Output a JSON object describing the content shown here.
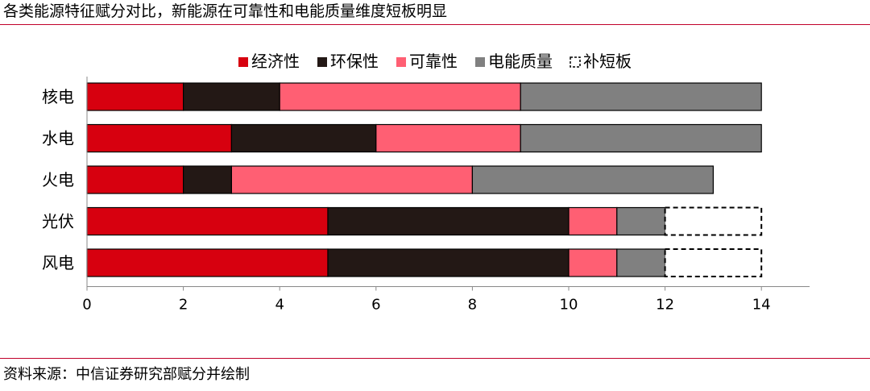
{
  "header": {
    "title": "各类能源特征赋分对比，新能源在可靠性和电能质量维度短板明显"
  },
  "footer": {
    "source": "资料来源：中信证券研究部赋分并绘制"
  },
  "chart_data": {
    "type": "bar",
    "orientation": "horizontal",
    "stacked": true,
    "categories": [
      "核电",
      "水电",
      "火电",
      "光伏",
      "风电"
    ],
    "series": [
      {
        "name": "经济性",
        "color": "#d7000f",
        "values": [
          2,
          3,
          2,
          5,
          5
        ]
      },
      {
        "name": "环保性",
        "color": "#231815",
        "values": [
          2,
          3,
          1,
          5,
          5
        ]
      },
      {
        "name": "可靠性",
        "color": "#ff5f73",
        "values": [
          5,
          3,
          5,
          1,
          1
        ]
      },
      {
        "name": "电能质量",
        "color": "#808080",
        "values": [
          5,
          5,
          5,
          1,
          1
        ]
      },
      {
        "name": "补短板",
        "color": "#ffffff",
        "style": "dashed-outline",
        "values": [
          0,
          0,
          0,
          2,
          2
        ]
      }
    ],
    "xticks": [
      0,
      2,
      4,
      6,
      8,
      10,
      12,
      14
    ],
    "xlim": [
      0,
      15
    ],
    "legend_position": "top",
    "grid": false
  }
}
